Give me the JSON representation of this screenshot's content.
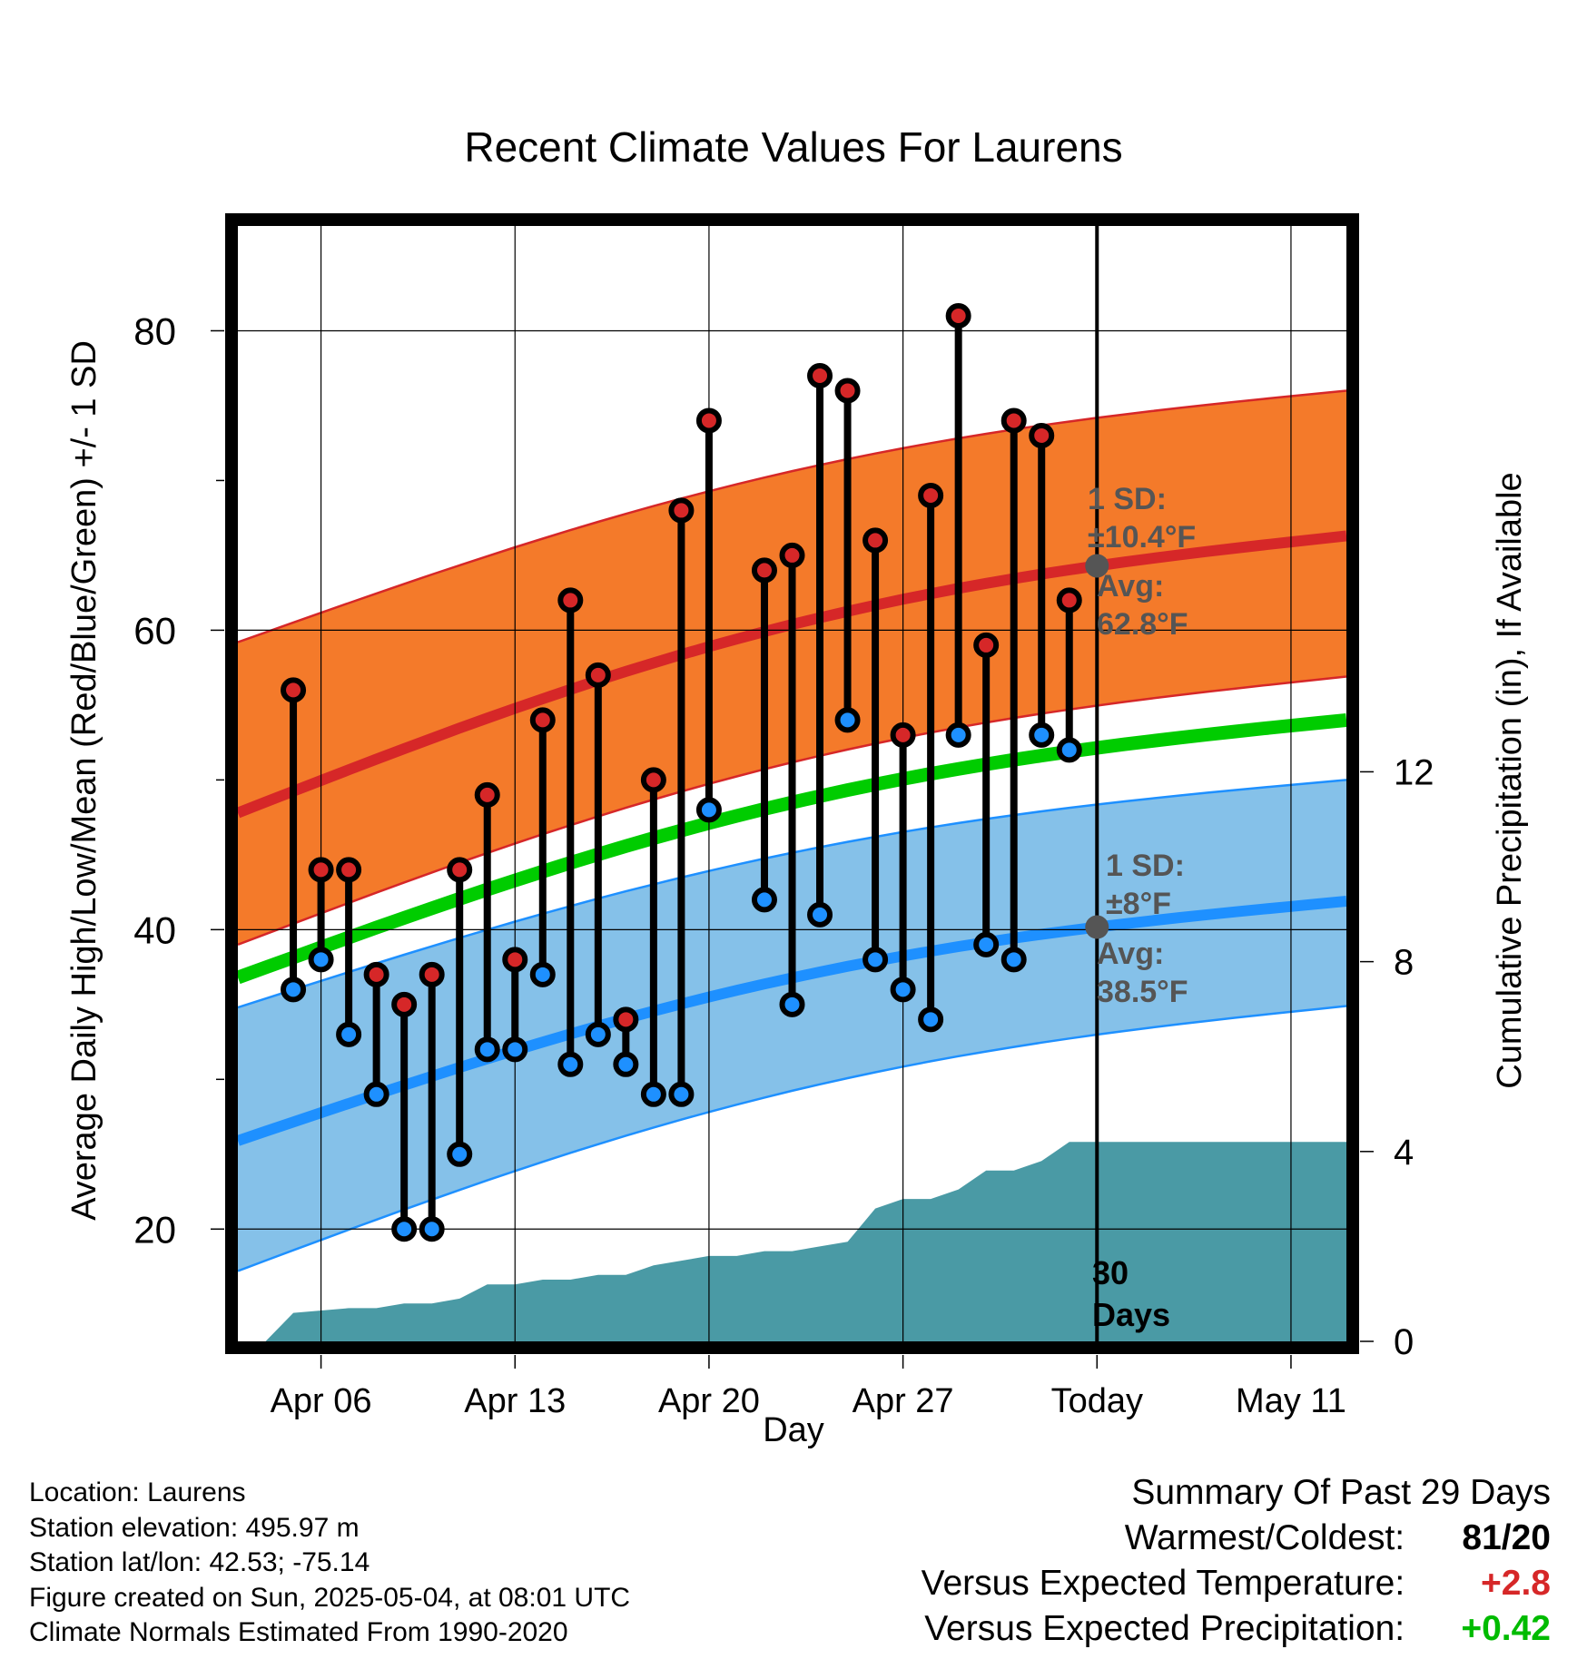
{
  "chart_data": {
    "type": "line",
    "title": "Recent Climate Values For Laurens",
    "xlabel": "Day",
    "ylabel_left": "Average Daily High/Low/Mean (Red/Blue/Green) +/- 1 SD",
    "ylabel_right": "Cumulative Precipitation (in), If Available",
    "x_ticklabels": [
      "Apr 06",
      "Apr 13",
      "Apr 20",
      "Apr 27",
      "Today",
      "May 11"
    ],
    "y_left_ticks": [
      20,
      40,
      60,
      80
    ],
    "y_left_range": [
      12.5,
      87
    ],
    "y_right_ticks": [
      0,
      4,
      8,
      12
    ],
    "y_right_range": [
      0,
      23.5
    ],
    "x_range": [
      "Apr 03",
      "May 13"
    ],
    "grid": true,
    "today_marker": {
      "date": "May 04",
      "label": "30 Days"
    },
    "daily_observations": {
      "dates": [
        "Apr 05",
        "Apr 06",
        "Apr 07",
        "Apr 08",
        "Apr 09",
        "Apr 10",
        "Apr 11",
        "Apr 12",
        "Apr 13",
        "Apr 14",
        "Apr 15",
        "Apr 16",
        "Apr 17",
        "Apr 18",
        "Apr 19",
        "Apr 20",
        "Apr 22",
        "Apr 23",
        "Apr 24",
        "Apr 25",
        "Apr 26",
        "Apr 27",
        "Apr 28",
        "Apr 29",
        "Apr 30",
        "May 01",
        "May 02",
        "May 03"
      ],
      "high": [
        56,
        44,
        44,
        37,
        35,
        37,
        44,
        49,
        38,
        54,
        62,
        57,
        34,
        50,
        68,
        74,
        64,
        65,
        77,
        76,
        66,
        53,
        69,
        81,
        59,
        74,
        73,
        62
      ],
      "low": [
        36,
        38,
        33,
        29,
        20,
        20,
        25,
        32,
        32,
        37,
        31,
        33,
        31,
        29,
        29,
        48,
        42,
        35,
        41,
        54,
        38,
        36,
        34,
        53,
        39,
        38,
        53,
        52
      ],
      "high_color": "#d62728",
      "low_color": "#1e90ff"
    },
    "normals": {
      "dates": [
        "Apr 03",
        "May 13"
      ],
      "avg_high": [
        47.8,
        66.3
      ],
      "avg_high_sd_upper": [
        59.2,
        76.0
      ],
      "avg_high_sd_lower": [
        39.0,
        56.9
      ],
      "avg_low": [
        25.9,
        41.9
      ],
      "avg_low_sd_upper": [
        34.8,
        50.0
      ],
      "avg_low_sd_lower": [
        17.2,
        34.9
      ],
      "avg_mean": [
        36.8,
        54.0
      ],
      "high_band_color": "#f47a2a",
      "high_line_color": "#d62728",
      "low_band_color": "#85c1e9",
      "low_line_color": "#1e90ff",
      "mean_line_color": "#00cc00"
    },
    "annotations": {
      "high_sd": "1 SD: ±10.4°F",
      "high_avg": "Avg: 62.8°F",
      "low_sd": "1 SD: ±8°F",
      "low_avg": "Avg: 38.5°F"
    },
    "cumulative_precipitation": {
      "dates": [
        "Apr 04",
        "Apr 05",
        "Apr 07",
        "Apr 08",
        "Apr 09",
        "Apr 10",
        "Apr 11",
        "Apr 12",
        "Apr 13",
        "Apr 14",
        "Apr 15",
        "Apr 16",
        "Apr 17",
        "Apr 18",
        "Apr 19",
        "Apr 20",
        "Apr 21",
        "Apr 22",
        "Apr 23",
        "Apr 24",
        "Apr 25",
        "Apr 26",
        "Apr 27",
        "Apr 28",
        "Apr 29",
        "Apr 30",
        "May 01",
        "May 02",
        "May 03",
        "May 13"
      ],
      "values": [
        0,
        0.6,
        0.7,
        0.7,
        0.8,
        0.8,
        0.9,
        1.2,
        1.2,
        1.3,
        1.3,
        1.4,
        1.4,
        1.6,
        1.7,
        1.8,
        1.8,
        1.9,
        1.9,
        2.0,
        2.1,
        2.8,
        3.0,
        3.0,
        3.2,
        3.6,
        3.6,
        3.8,
        4.2,
        4.2
      ],
      "color": "#4a9aa5"
    }
  },
  "footer": {
    "location": "Location: Laurens",
    "elevation": "Station elevation: 495.97 m",
    "latlon": "Station lat/lon: 42.53; -75.14",
    "created": "Figure created on Sun, 2025-05-04, at 08:01 UTC",
    "normals": "Climate Normals Estimated From 1990-2020"
  },
  "summary": {
    "heading": "Summary Of Past 29 Days",
    "warmest_coldest_label": "Warmest/Coldest:",
    "warmest_coldest_value": "81/20",
    "temp_label": "Versus Expected Temperature:",
    "temp_value": "+2.8",
    "temp_color": "#d62728",
    "precip_label": "Versus Expected Precipitation:",
    "precip_value": "+0.42",
    "precip_color": "#00bb00"
  }
}
